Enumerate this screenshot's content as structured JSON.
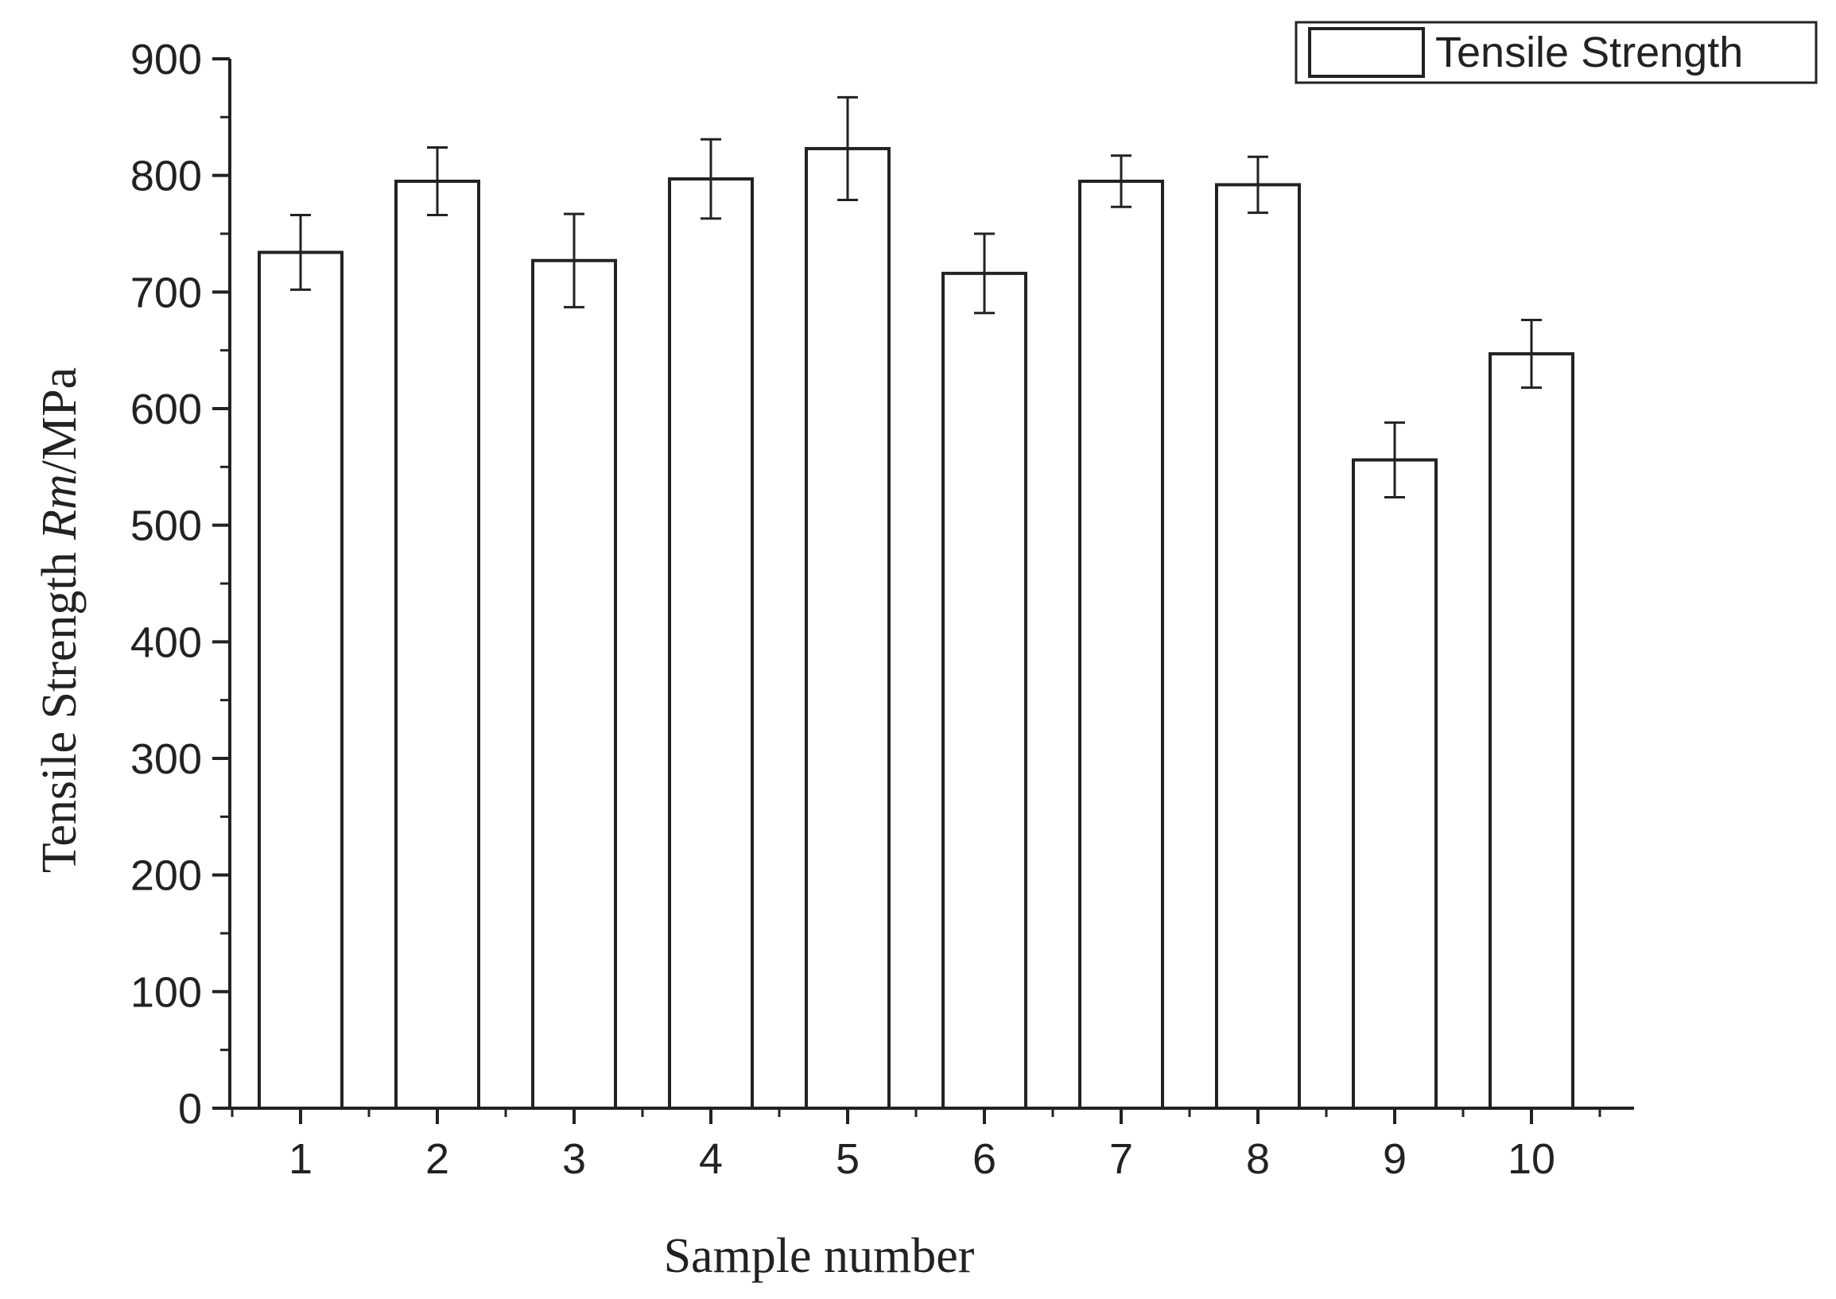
{
  "chart_data": {
    "type": "bar",
    "categories": [
      "1",
      "2",
      "3",
      "4",
      "5",
      "6",
      "7",
      "8",
      "9",
      "10"
    ],
    "series": [
      {
        "name": "Tensile Strength",
        "values": [
          734,
          795,
          727,
          797,
          823,
          716,
          795,
          792,
          556,
          647
        ],
        "error": [
          32,
          29,
          40,
          34,
          44,
          34,
          22,
          24,
          32,
          29
        ]
      }
    ],
    "xlabel": "Sample number",
    "ylabel": {
      "prefix": "Tensile Strength ",
      "italic": "Rm",
      "suffix": "/MPa"
    },
    "ylim": [
      0,
      900
    ],
    "yticks": [
      "0",
      "100",
      "200",
      "300",
      "400",
      "500",
      "600",
      "700",
      "800",
      "900"
    ],
    "grid": false,
    "legend_position": "top-right",
    "colors": {
      "bar_fill": "#ffffff",
      "bar_stroke": "#222222",
      "axis": "#222222",
      "text": "#222222"
    }
  }
}
